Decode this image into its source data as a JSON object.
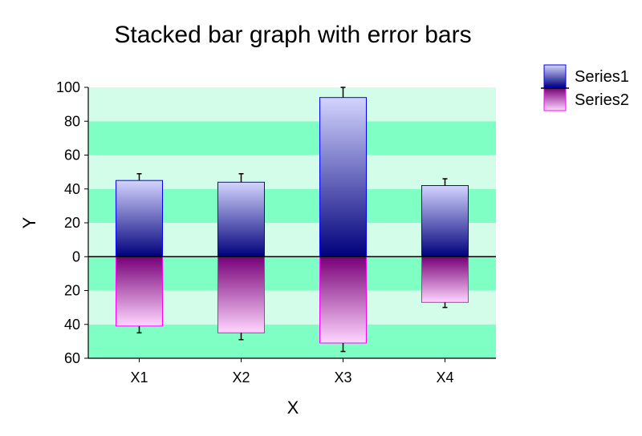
{
  "chart_data": {
    "type": "bar",
    "title": "Stacked bar graph with error bars",
    "xlabel": "X",
    "ylabel": "Y",
    "ylim": [
      -60,
      100
    ],
    "yticks": [
      100,
      80,
      60,
      40,
      20,
      0,
      -20,
      -40,
      -60
    ],
    "ytick_labels": [
      "100",
      "80",
      "60",
      "40",
      "20",
      "0",
      "20",
      "40",
      "60"
    ],
    "categories": [
      "X1",
      "X2",
      "X3",
      "X4"
    ],
    "series": [
      {
        "name": "Series1",
        "values": [
          45,
          44,
          94,
          42
        ],
        "error": [
          4,
          5,
          6,
          4
        ]
      },
      {
        "name": "Series2",
        "values": [
          -41,
          -45,
          -51,
          -27
        ],
        "error": [
          4,
          4,
          5,
          3
        ]
      }
    ],
    "grid": "horizontal alternating bands",
    "legend": "top-right",
    "colors": {
      "band_light": "#d4fde9",
      "band_dark": "#80ffc4",
      "series1_top": "#d4d4ff",
      "series1_bottom": "#00007c",
      "series1_border": "#0000ff",
      "series2_top": "#780078",
      "series2_bottom": "#ffd6ff",
      "series2_border": "#ff00ff"
    }
  }
}
